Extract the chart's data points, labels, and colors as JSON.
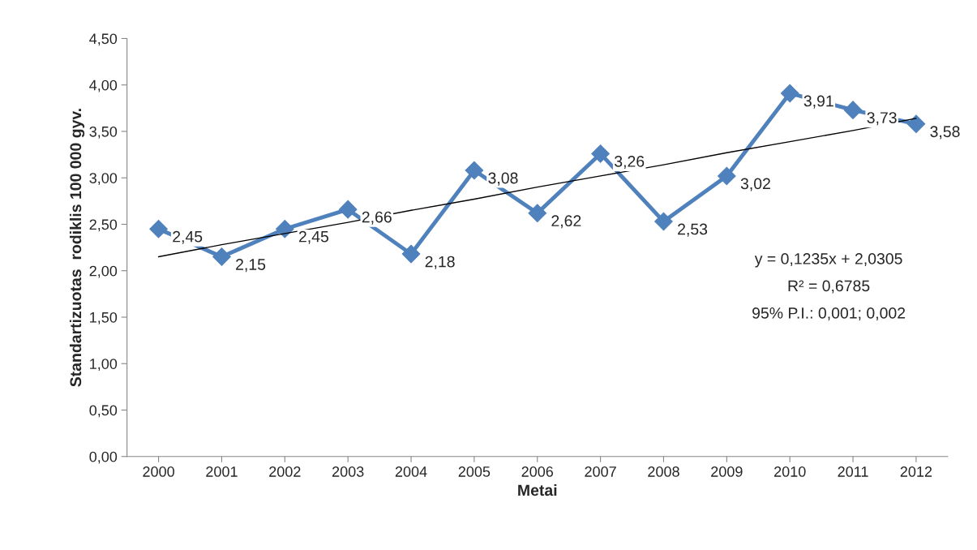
{
  "chart_data": {
    "type": "line",
    "xlabel": "Metai",
    "ylabel": "Standartizuotas  rodiklis 100 000 gyv.",
    "categories": [
      "2000",
      "2001",
      "2002",
      "2003",
      "2004",
      "2005",
      "2006",
      "2007",
      "2008",
      "2009",
      "2010",
      "2011",
      "2012"
    ],
    "series": [
      {
        "color": "#4f81bd",
        "marker": "diamond",
        "values": [
          2.45,
          2.15,
          2.45,
          2.66,
          2.18,
          3.08,
          2.62,
          3.26,
          2.53,
          3.02,
          3.91,
          3.73,
          3.58
        ],
        "value_labels": [
          "2,45",
          "2,15",
          "2,45",
          "2,66",
          "2,18",
          "3,08",
          "2,62",
          "3,26",
          "2,53",
          "3,02",
          "3,91",
          "3,73",
          "3,58"
        ]
      },
      {
        "type": "line",
        "color": "#000000",
        "marker": "none",
        "values": [
          2.15,
          2.28,
          2.4,
          2.52,
          2.65,
          2.77,
          2.9,
          3.02,
          3.14,
          3.27,
          3.39,
          3.51,
          3.64
        ]
      }
    ],
    "ylim": [
      0,
      4.5
    ],
    "yticks": [
      {
        "value": 0,
        "label": "0,00"
      },
      {
        "value": 0.5,
        "label": "0,50"
      },
      {
        "value": 1,
        "label": "1,00"
      },
      {
        "value": 1.5,
        "label": "1,50"
      },
      {
        "value": 2,
        "label": "2,00"
      },
      {
        "value": 2.5,
        "label": "2,50"
      },
      {
        "value": 3,
        "label": "3,00"
      },
      {
        "value": 3.5,
        "label": "3,50"
      },
      {
        "value": 4,
        "label": "4,00"
      },
      {
        "value": 4.5,
        "label": "4,50"
      }
    ],
    "annotations": [
      "y = 0,1235x + 2,0305",
      "R² = 0,6785",
      "95% P.I.: 0,001; 0,002"
    ],
    "grid": false,
    "legend": false
  }
}
